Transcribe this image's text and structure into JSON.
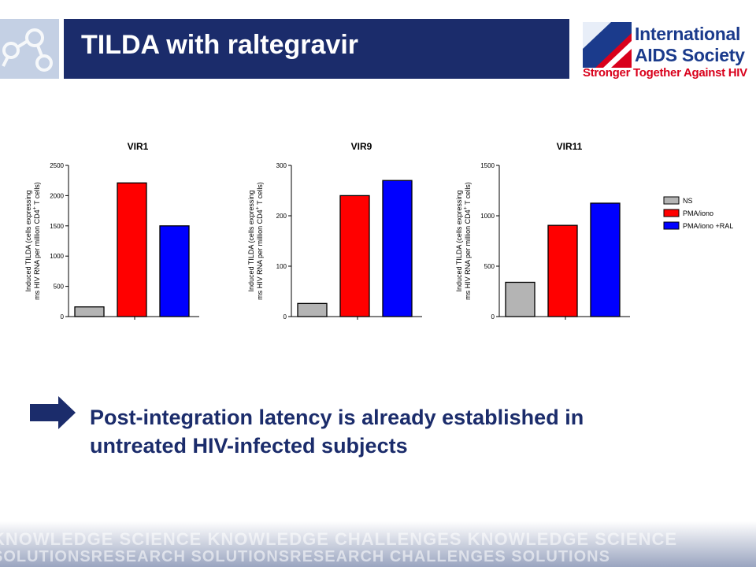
{
  "header": {
    "title": "TILDA with raltegravir",
    "logo_name_line1": "International",
    "logo_name_line2": "AIDS Society",
    "logo_tagline": "Stronger Together Against HIV"
  },
  "conclusion": {
    "line1": "Post-integration latency is already established in",
    "line2": "untreated HIV-infected subjects"
  },
  "footer": {
    "words_line1": "KNOWLEDGE SCIENCE KNOWLEDGE CHALLENGES KNOWLEDGE SCIENCE",
    "words_line2": "SOLUTIONSRESEARCH SOLUTIONSRESEARCH CHALLENGES SOLUTIONS"
  },
  "colors": {
    "header_bar": "#1b2c6b",
    "text_blue": "#1b2c6b",
    "ns": "#b4b4b4",
    "pma_iono": "#ff0000",
    "pma_iono_ral": "#0000ff"
  },
  "chart_data": [
    {
      "type": "bar",
      "title": "VIR1",
      "ylabel_line1": "Induced TILDA (cells expressing",
      "ylabel_line2": "ms HIV RNA per million CD4",
      "ylabel_sup": "+",
      "ylabel_end": " T cells)",
      "categories": [
        "NS",
        "PMA/iono",
        "PMA/iono +RAL"
      ],
      "values": [
        160,
        2210,
        1500
      ],
      "ylim": [
        0,
        2500
      ],
      "yticks": [
        0,
        500,
        1000,
        1500,
        2000,
        2500
      ]
    },
    {
      "type": "bar",
      "title": "VIR9",
      "ylabel_line1": "Induced TILDA (cells expressing",
      "ylabel_line2": "ms HIV RNA per million CD4",
      "ylabel_sup": "+",
      "ylabel_end": " T cells)",
      "categories": [
        "NS",
        "PMA/iono",
        "PMA/iono +RAL"
      ],
      "values": [
        26,
        240,
        270
      ],
      "ylim": [
        0,
        300
      ],
      "yticks": [
        0,
        100,
        200,
        300
      ]
    },
    {
      "type": "bar",
      "title": "VIR11",
      "ylabel_line1": "Induced TILDA (cells expressing",
      "ylabel_line2": "ms HIV RNA per million CD4",
      "ylabel_sup": "+",
      "ylabel_end": " T cells)",
      "categories": [
        "NS",
        "PMA/iono",
        "PMA/iono +RAL"
      ],
      "values": [
        340,
        905,
        1125
      ],
      "ylim": [
        0,
        1500
      ],
      "yticks": [
        0,
        500,
        1000,
        1500
      ]
    }
  ],
  "legend": [
    {
      "label": "NS",
      "color": "#b4b4b4"
    },
    {
      "label": "PMA/iono",
      "color": "#ff0000"
    },
    {
      "label": "PMA/iono +RAL",
      "color": "#0000ff"
    }
  ]
}
